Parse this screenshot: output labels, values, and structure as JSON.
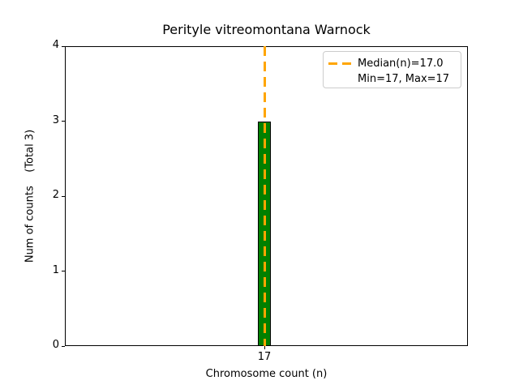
{
  "figure": {
    "background": "#ffffff"
  },
  "chart_data": {
    "type": "bar",
    "title": "Perityle vitreomontana Warnock",
    "xlabel": "Chromosome count (n)",
    "ylabel": "Num of counts    (Total 3)",
    "categories": [
      "17"
    ],
    "values": [
      3
    ],
    "total_counts": 3,
    "ylim": [
      0,
      4
    ],
    "yticks": [
      0,
      1,
      2,
      3,
      4
    ],
    "grid": false,
    "bar_color": "#008000",
    "bar_edge_color": "#000000",
    "median_line": {
      "value": 17.0,
      "color": "#FFA500",
      "style": "dashed"
    },
    "legend": {
      "position": "upper right",
      "entries": [
        {
          "label": "Median(n)=17.0",
          "handle": "orange-dashed-line"
        },
        {
          "label": "Min=17, Max=17",
          "handle": "none"
        }
      ]
    }
  }
}
